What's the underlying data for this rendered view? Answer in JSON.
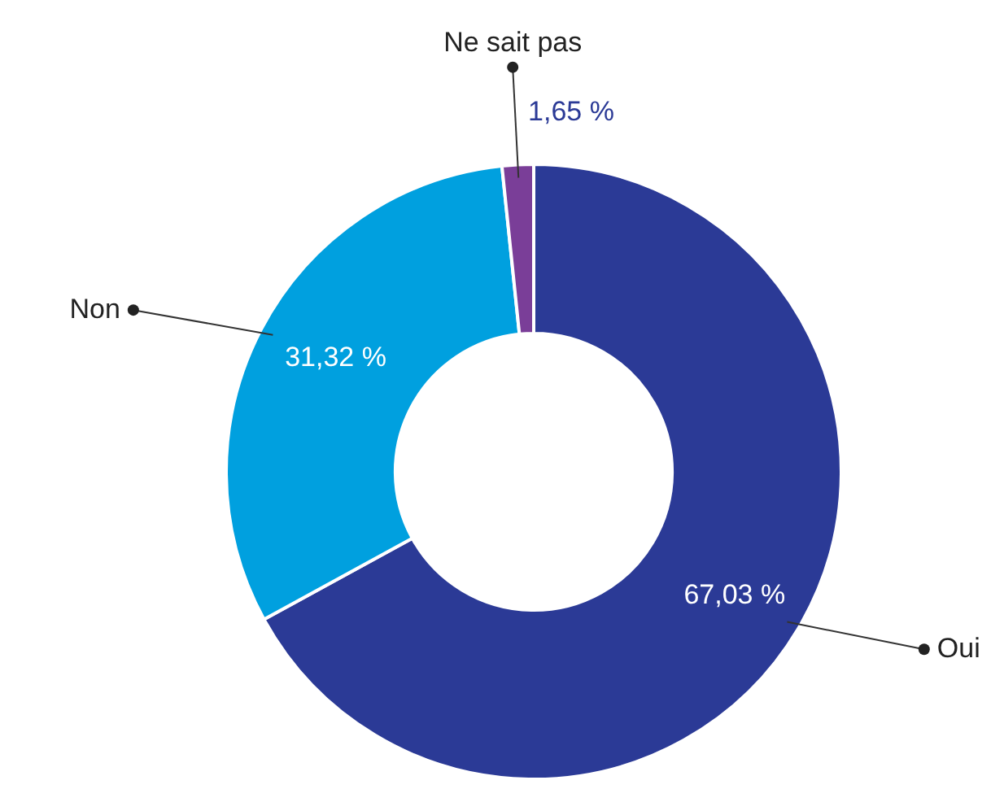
{
  "chart_data": {
    "type": "donut",
    "categories": [
      "Oui",
      "Non",
      "Ne sait pas"
    ],
    "values": [
      67.03,
      31.32,
      1.65
    ],
    "colors": [
      "#2b3a96",
      "#00a0df",
      "#7a3e98"
    ],
    "value_labels": [
      "67,03 %",
      "31,32 %",
      "1,65 %"
    ],
    "legend": false
  }
}
